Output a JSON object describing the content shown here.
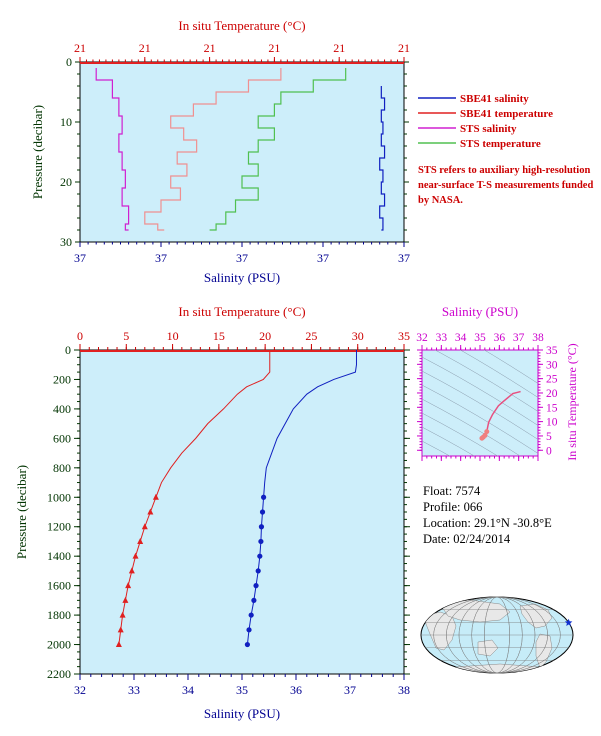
{
  "colors": {
    "plot_bg": "#cdeefa",
    "salinity": "#1020c0",
    "temperature": "#e02020",
    "sts_salinity": "#d020d0",
    "sts_temperature": "#50c050",
    "sts_temperature_fill": "#f09090",
    "axis_red": "#cc0000",
    "axis_blue": "#000090",
    "axis_green": "#003300",
    "axis_magenta": "#cc00cc",
    "land": "#e8e8e8",
    "ocean": "#c6ecf8"
  },
  "legend": {
    "items": [
      {
        "label": "SBE41 salinity",
        "color": "#1020c0"
      },
      {
        "label": "SBE41 temperature",
        "color": "#e02020"
      },
      {
        "label": "STS salinity",
        "color": "#d020d0"
      },
      {
        "label": "STS temperature",
        "color": "#50c050"
      }
    ],
    "note": "STS refers to auxiliary high-resolution near-surface T-S measurements funded by NASA."
  },
  "float_info": {
    "float": "Float:  7574",
    "profile": "Profile:  066",
    "location": "Location:  29.1°N  -30.8°E",
    "date": "Date:  02/24/2014"
  },
  "footer_text": "",
  "chart_data": [
    {
      "id": "near-surface",
      "type": "line",
      "top_axis_label": "In situ Temperature (°C)",
      "top_tick_labels": [
        "21",
        "21",
        "21",
        "21",
        "21",
        "21"
      ],
      "bottom_axis_label": "Salinity (PSU)",
      "bottom_tick_labels": [
        "37",
        "37",
        "37",
        "37",
        "37"
      ],
      "ylabel": "Pressure (decibar)",
      "yticks": [
        0,
        10,
        20,
        30
      ],
      "ylim": [
        30,
        0
      ],
      "series": [
        {
          "name": "SBE41 salinity",
          "pressure": [
            4,
            6,
            8,
            10,
            12,
            14,
            16,
            18,
            20,
            22,
            24,
            26,
            28
          ],
          "x_frac": [
            0.93,
            0.94,
            0.93,
            0.935,
            0.93,
            0.94,
            0.925,
            0.935,
            0.93,
            0.94,
            0.925,
            0.935,
            0.93
          ]
        },
        {
          "name": "STS salinity",
          "pressure": [
            1,
            3,
            6,
            9,
            12,
            15,
            18,
            21,
            24,
            27,
            28
          ],
          "x_frac": [
            0.05,
            0.1,
            0.12,
            0.13,
            0.12,
            0.13,
            0.14,
            0.13,
            0.15,
            0.14,
            0.15
          ]
        },
        {
          "name": "STS temperature",
          "pressure": [
            1,
            3,
            5,
            7,
            9,
            11,
            13,
            15,
            17,
            19,
            21,
            23,
            25,
            27,
            28
          ],
          "x_frac": [
            0.82,
            0.72,
            0.62,
            0.6,
            0.55,
            0.6,
            0.55,
            0.52,
            0.55,
            0.5,
            0.55,
            0.48,
            0.45,
            0.42,
            0.4
          ]
        },
        {
          "name": "SBE41 temperature",
          "pressure": [
            1,
            3,
            5,
            7,
            9,
            11,
            13,
            15,
            17,
            19,
            21,
            23,
            25,
            27,
            28
          ],
          "x_frac": [
            0.62,
            0.52,
            0.42,
            0.35,
            0.28,
            0.32,
            0.36,
            0.3,
            0.33,
            0.28,
            0.31,
            0.25,
            0.2,
            0.24,
            0.26
          ]
        }
      ]
    },
    {
      "id": "full-profile",
      "type": "line",
      "top_axis_label": "In situ Temperature (°C)",
      "xlabel_top_ticks": [
        0,
        5,
        10,
        15,
        20,
        25,
        30,
        35
      ],
      "bottom_axis_label": "Salinity (PSU)",
      "xlabel_bottom_ticks": [
        32,
        33,
        34,
        35,
        36,
        37,
        38
      ],
      "ylabel": "Pressure (decibar)",
      "yticks": [
        0,
        200,
        400,
        600,
        800,
        1000,
        1200,
        1400,
        1600,
        1800,
        2000,
        2200
      ],
      "temp_lim": [
        0,
        35
      ],
      "sal_lim": [
        32,
        38
      ],
      "ylim": [
        2200,
        0
      ],
      "series": [
        {
          "name": "Temperature",
          "pressure": [
            0,
            50,
            100,
            150,
            200,
            250,
            300,
            400,
            500,
            600,
            700,
            800,
            900,
            1000,
            1100,
            1200,
            1300,
            1400,
            1500,
            1600,
            1700,
            1800,
            1900,
            2000
          ],
          "values": [
            20.5,
            20.5,
            20.5,
            20.5,
            19.8,
            18.0,
            17.0,
            15.5,
            13.8,
            12.5,
            11.0,
            9.8,
            8.8,
            8.2,
            7.6,
            7.0,
            6.5,
            6.0,
            5.6,
            5.2,
            4.9,
            4.6,
            4.4,
            4.2
          ]
        },
        {
          "name": "Salinity",
          "pressure": [
            0,
            50,
            100,
            150,
            200,
            250,
            300,
            400,
            500,
            600,
            700,
            800,
            900,
            1000,
            1100,
            1200,
            1300,
            1400,
            1500,
            1600,
            1700,
            1800,
            1900,
            2000
          ],
          "values": [
            37.12,
            37.12,
            37.12,
            37.1,
            36.7,
            36.4,
            36.2,
            35.95,
            35.8,
            35.65,
            35.55,
            35.45,
            35.42,
            35.4,
            35.38,
            35.36,
            35.35,
            35.33,
            35.3,
            35.26,
            35.22,
            35.17,
            35.13,
            35.1
          ]
        }
      ]
    },
    {
      "id": "ts-diagram",
      "type": "scatter",
      "top_axis_label": "Salinity (PSU)",
      "xticks": [
        32,
        33,
        34,
        35,
        36,
        37,
        38
      ],
      "ylabel": "In situ Temperature (°C)",
      "yticks": [
        0,
        5,
        10,
        15,
        20,
        25,
        30,
        35
      ],
      "xlim": [
        32,
        38
      ],
      "ylim": [
        -2,
        35
      ],
      "series": [
        {
          "name": "T-S",
          "salinity": [
            35.1,
            35.17,
            35.26,
            35.35,
            35.4,
            35.45,
            35.65,
            35.95,
            36.2,
            36.7,
            37.1
          ],
          "temperature": [
            4.2,
            4.6,
            5.2,
            6.5,
            8.2,
            9.8,
            12.5,
            15.5,
            17.0,
            19.8,
            20.5
          ]
        }
      ]
    },
    {
      "id": "location-map",
      "type": "scatter",
      "lon": -30.8,
      "lat": 29.1
    }
  ]
}
